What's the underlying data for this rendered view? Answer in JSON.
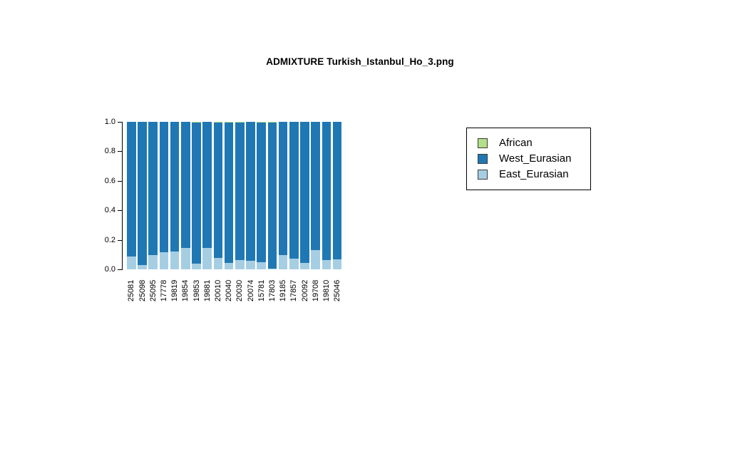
{
  "chart_data": {
    "type": "bar",
    "stacked": true,
    "title": "ADMIXTURE Turkish_Istanbul_Ho_3.png",
    "xlabel": "",
    "ylabel": "",
    "ylim": [
      0,
      1
    ],
    "yticks": [
      "0.0",
      "0.2",
      "0.4",
      "0.6",
      "0.8",
      "1.0"
    ],
    "grid": false,
    "background": "#FFFFFF",
    "axis_color": "#000000",
    "categories": [
      "25081",
      "25098",
      "25095",
      "17778",
      "19819",
      "19854",
      "19853",
      "19881",
      "20010",
      "20040",
      "20030",
      "20074",
      "15781",
      "17803",
      "19185",
      "17857",
      "20092",
      "19708",
      "19810",
      "25046"
    ],
    "series": [
      {
        "name": "African",
        "color": "#B2DF8A",
        "values": [
          0,
          0,
          0,
          0,
          0,
          0,
          0.007,
          0,
          0.007,
          0.007,
          0.007,
          0,
          0.007,
          0.007,
          0,
          0,
          0,
          0,
          0,
          0
        ]
      },
      {
        "name": "West_Eurasian",
        "color": "#1F78B4",
        "values": [
          0.915,
          0.97,
          0.905,
          0.886,
          0.878,
          0.855,
          0.953,
          0.855,
          0.918,
          0.948,
          0.929,
          0.942,
          0.943,
          0.987,
          0.902,
          0.927,
          0.956,
          0.868,
          0.937,
          0.93
        ]
      },
      {
        "name": "East_Eurasian",
        "color": "#A6CEE3",
        "values": [
          0.085,
          0.03,
          0.095,
          0.114,
          0.122,
          0.145,
          0.04,
          0.145,
          0.075,
          0.045,
          0.064,
          0.058,
          0.05,
          0.006,
          0.098,
          0.073,
          0.044,
          0.132,
          0.063,
          0.07
        ]
      }
    ],
    "legend": {
      "position": "right",
      "entries": [
        "African",
        "West_Eurasian",
        "East_Eurasian"
      ]
    }
  }
}
